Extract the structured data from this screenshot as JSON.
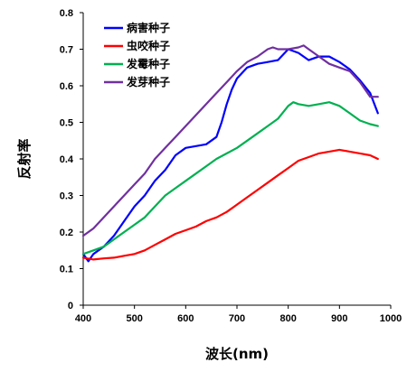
{
  "chart_data": {
    "type": "line",
    "title": "",
    "xlabel": "波长(nm)",
    "ylabel": "反射率",
    "xlim": [
      400,
      1000
    ],
    "ylim": [
      0,
      0.8
    ],
    "x_ticks": [
      400,
      500,
      600,
      700,
      800,
      900,
      1000
    ],
    "y_ticks": [
      0,
      0.1,
      0.2,
      0.3,
      0.4,
      0.5,
      0.6,
      0.7,
      0.8
    ],
    "y_tick_labels": [
      "0",
      "0.1",
      "0.2",
      "0.3",
      "0.4",
      "0.5",
      "0.6",
      "0.7",
      "0.8"
    ],
    "grid": false,
    "legend_position": "top-left",
    "series": [
      {
        "name": "病害种子",
        "color": "#0000ff",
        "x": [
          400,
          410,
          420,
          440,
          460,
          480,
          500,
          520,
          540,
          560,
          580,
          600,
          620,
          640,
          660,
          670,
          680,
          690,
          700,
          720,
          740,
          760,
          780,
          800,
          820,
          840,
          860,
          880,
          900,
          920,
          940,
          960,
          975
        ],
        "y": [
          0.14,
          0.12,
          0.14,
          0.16,
          0.19,
          0.23,
          0.27,
          0.3,
          0.34,
          0.37,
          0.41,
          0.43,
          0.435,
          0.44,
          0.46,
          0.5,
          0.55,
          0.59,
          0.62,
          0.65,
          0.66,
          0.665,
          0.67,
          0.7,
          0.69,
          0.67,
          0.68,
          0.68,
          0.665,
          0.645,
          0.615,
          0.58,
          0.525
        ]
      },
      {
        "name": "虫咬种子",
        "color": "#ff0000",
        "x": [
          400,
          420,
          440,
          460,
          480,
          500,
          520,
          540,
          560,
          580,
          600,
          620,
          640,
          660,
          680,
          700,
          720,
          740,
          760,
          780,
          800,
          820,
          840,
          860,
          880,
          900,
          920,
          940,
          960,
          975
        ],
        "y": [
          0.13,
          0.125,
          0.128,
          0.13,
          0.135,
          0.14,
          0.15,
          0.165,
          0.18,
          0.195,
          0.205,
          0.215,
          0.23,
          0.24,
          0.255,
          0.275,
          0.295,
          0.315,
          0.335,
          0.355,
          0.375,
          0.395,
          0.405,
          0.415,
          0.42,
          0.425,
          0.42,
          0.415,
          0.41,
          0.4
        ]
      },
      {
        "name": "发霉种子",
        "color": "#00b050",
        "x": [
          400,
          420,
          440,
          460,
          480,
          500,
          520,
          540,
          560,
          580,
          600,
          620,
          640,
          660,
          680,
          700,
          720,
          740,
          760,
          780,
          800,
          810,
          820,
          840,
          860,
          880,
          900,
          920,
          940,
          960,
          975
        ],
        "y": [
          0.14,
          0.15,
          0.16,
          0.18,
          0.2,
          0.22,
          0.24,
          0.27,
          0.3,
          0.32,
          0.34,
          0.36,
          0.38,
          0.4,
          0.415,
          0.43,
          0.45,
          0.47,
          0.49,
          0.51,
          0.545,
          0.555,
          0.55,
          0.545,
          0.55,
          0.555,
          0.545,
          0.525,
          0.505,
          0.495,
          0.49
        ]
      },
      {
        "name": "发芽种子",
        "color": "#7030a0",
        "x": [
          400,
          420,
          440,
          460,
          480,
          500,
          520,
          540,
          560,
          580,
          600,
          620,
          640,
          660,
          680,
          700,
          720,
          740,
          760,
          770,
          780,
          800,
          820,
          830,
          840,
          860,
          880,
          900,
          920,
          940,
          960,
          975
        ],
        "y": [
          0.19,
          0.21,
          0.24,
          0.27,
          0.3,
          0.33,
          0.36,
          0.4,
          0.43,
          0.46,
          0.49,
          0.52,
          0.55,
          0.58,
          0.61,
          0.64,
          0.665,
          0.68,
          0.7,
          0.705,
          0.7,
          0.7,
          0.705,
          0.71,
          0.7,
          0.68,
          0.66,
          0.65,
          0.64,
          0.61,
          0.57,
          0.57
        ]
      }
    ]
  }
}
